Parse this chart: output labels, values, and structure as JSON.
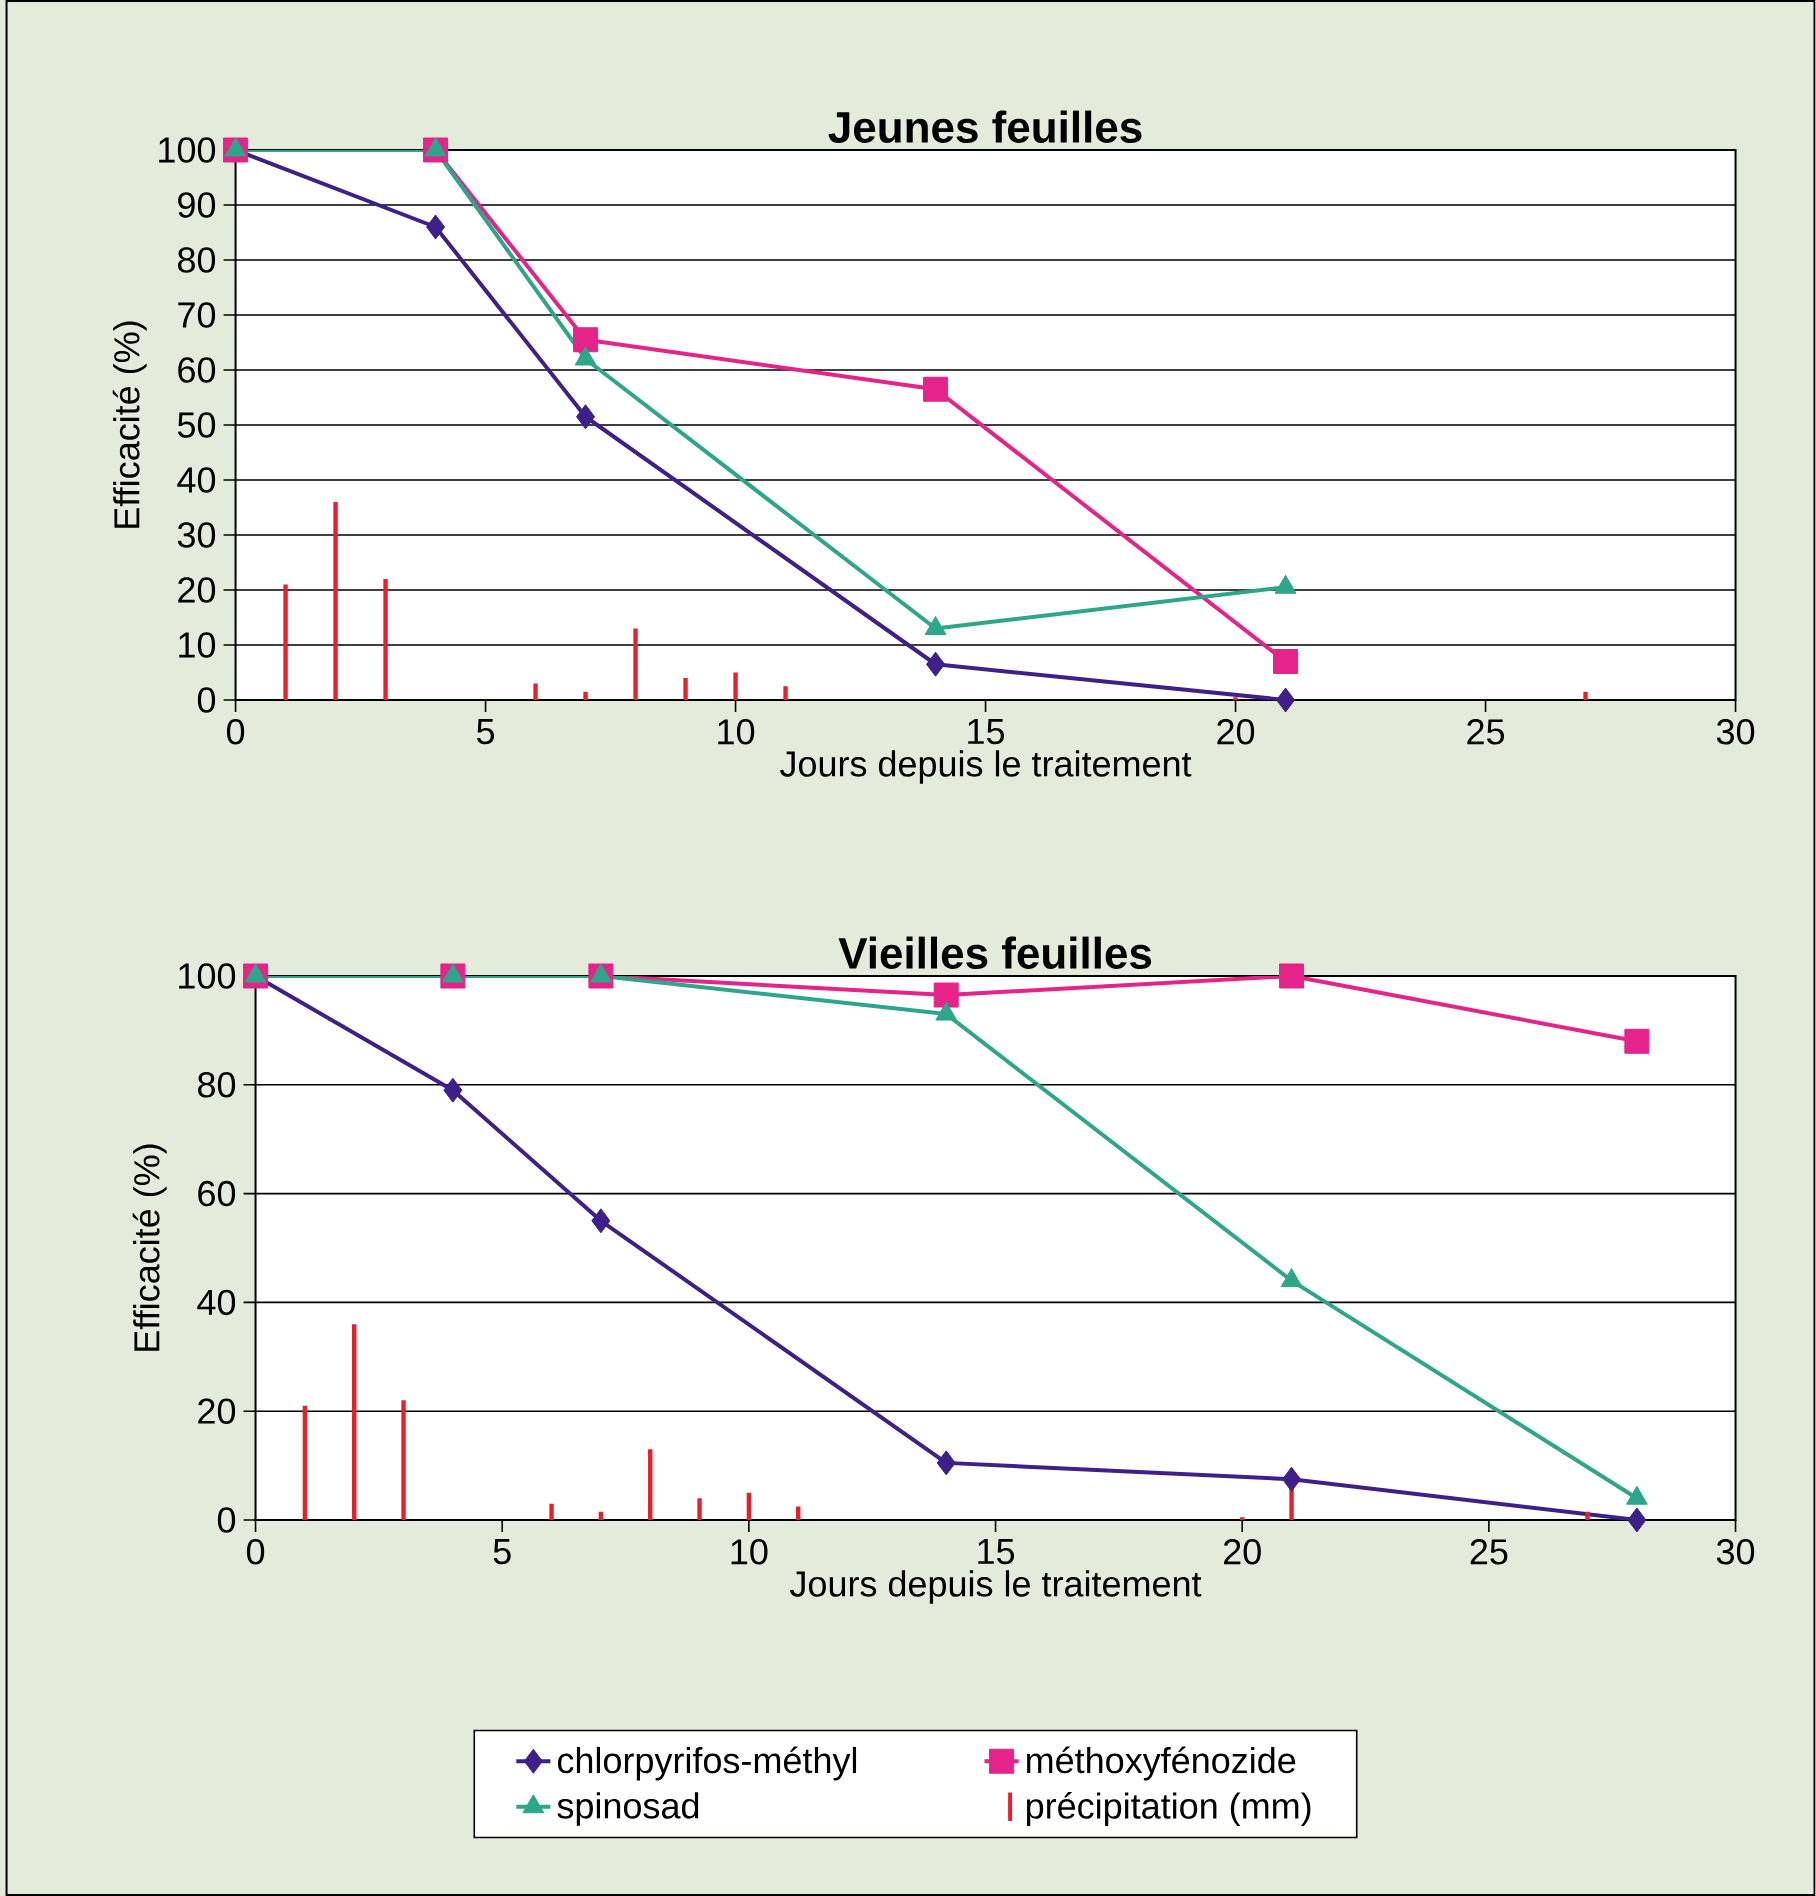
{
  "chart_data": [
    {
      "type": "line",
      "title": "Jeunes feuilles",
      "xlabel": "Jours depuis le traitement",
      "ylabel": "Efficacité (%)",
      "xlim": [
        0,
        30
      ],
      "xticks": [
        0,
        5,
        10,
        15,
        20,
        25,
        30
      ],
      "ylim": [
        0,
        100
      ],
      "yticks": [
        0,
        10,
        20,
        30,
        40,
        50,
        60,
        70,
        80,
        90,
        100
      ],
      "grid": "y",
      "series": [
        {
          "type": "bar",
          "color": "#e8202a",
          "x": [
            0,
            1,
            2,
            3,
            4,
            5,
            6,
            7,
            8,
            9,
            10,
            11,
            12,
            13,
            14,
            15,
            16,
            17,
            18,
            19,
            20,
            21,
            22,
            23,
            24,
            25,
            26,
            27,
            28
          ],
          "values": [
            0,
            21,
            36,
            22,
            0,
            0,
            3,
            1.5,
            13,
            4,
            5,
            2.5,
            0,
            0,
            0,
            0,
            0,
            0,
            0,
            0,
            0.5,
            null,
            0,
            0,
            0,
            0,
            0,
            1.5,
            0
          ]
        },
        {
          "color": "#3f1f8a",
          "marker": "diamond",
          "x": [
            0,
            4,
            7,
            14,
            21
          ],
          "values": [
            100,
            86,
            51.5,
            6.5,
            0
          ]
        },
        {
          "color": "#e5238a",
          "marker": "square",
          "x": [
            0,
            4,
            7,
            14,
            21
          ],
          "values": [
            100,
            100,
            65.5,
            56.5,
            7
          ]
        },
        {
          "color": "#2ea68a",
          "marker": "triangle",
          "x": [
            0,
            4,
            7,
            14,
            21
          ],
          "values": [
            100,
            100,
            62,
            13,
            20.5
          ]
        }
      ]
    },
    {
      "type": "line",
      "title": "Vieilles feuilles",
      "xlabel": "Jours depuis le traitement",
      "ylabel": "Efficacité (%)",
      "xlim": [
        0,
        30
      ],
      "xticks": [
        0,
        5,
        10,
        15,
        20,
        25,
        30
      ],
      "ylim": [
        0,
        100
      ],
      "yticks": [
        0,
        20,
        40,
        60,
        80,
        100
      ],
      "grid": "y",
      "legend": "bottom",
      "series": [
        {
          "name": "chlorpyrifos-méthyl",
          "color": "#3f1f8a",
          "marker": "diamond",
          "x": [
            0,
            4,
            7,
            14,
            21,
            28
          ],
          "values": [
            100,
            79,
            55,
            10.5,
            7.5,
            0
          ]
        },
        {
          "name": "méthoxyfénozide",
          "color": "#e5238a",
          "marker": "square",
          "x": [
            0,
            4,
            7,
            14,
            21,
            28
          ],
          "values": [
            100,
            100,
            100,
            96.5,
            100,
            88
          ]
        },
        {
          "name": "spinosad",
          "color": "#2ea68a",
          "marker": "triangle",
          "x": [
            0,
            4,
            7,
            14,
            21,
            28
          ],
          "values": [
            100,
            100,
            100,
            93,
            44,
            4
          ]
        },
        {
          "name": "précipitation (mm)",
          "type": "bar",
          "color": "#e8202a",
          "x": [
            0,
            1,
            2,
            3,
            4,
            5,
            6,
            7,
            8,
            9,
            10,
            11,
            12,
            13,
            14,
            15,
            16,
            17,
            18,
            19,
            20,
            21,
            22,
            23,
            24,
            25,
            26,
            27,
            28
          ],
          "values": [
            0,
            21,
            36,
            22,
            0,
            0,
            3,
            1.5,
            13,
            4,
            5,
            2.5,
            0,
            0,
            0,
            0,
            0,
            0,
            0,
            0,
            0.5,
            6,
            0,
            0,
            0,
            0,
            0,
            1.5,
            0
          ]
        }
      ]
    }
  ]
}
